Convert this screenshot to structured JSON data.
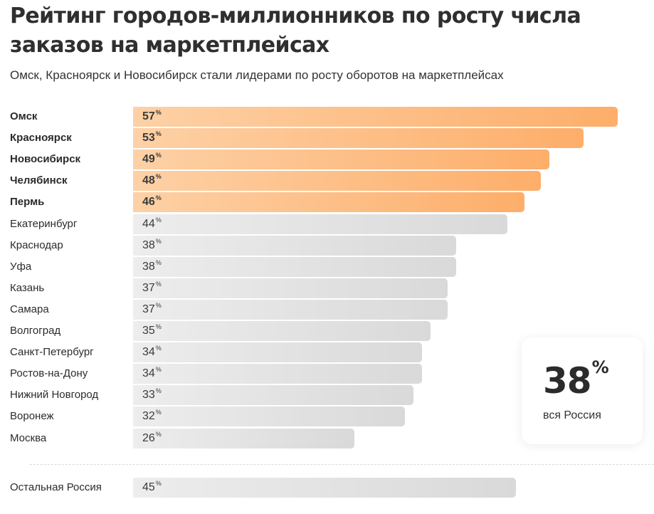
{
  "chart_data": {
    "type": "bar",
    "orientation": "horizontal",
    "title": "Рейтинг городов-миллионников по росту числа заказов на маркетплейсах",
    "subtitle": "Омск, Красноярск и Новосибирск стали лидерами по росту оборотов на маркетплейсах",
    "unit": "%",
    "xlim": [
      0,
      57
    ],
    "categories": [
      "Омск",
      "Красноярск",
      "Новосибирск",
      "Челябинск",
      "Пермь",
      "Екатеринбург",
      "Краснодар",
      "Уфа",
      "Казань",
      "Самара",
      "Волгоград",
      "Санкт-Петербург",
      "Ростов-на-Дону",
      "Нижний Новгород",
      "Воронеж",
      "Москва"
    ],
    "values": [
      57,
      53,
      49,
      48,
      46,
      44,
      38,
      38,
      37,
      37,
      35,
      34,
      34,
      33,
      32,
      26
    ],
    "highlighted_top": 5,
    "extra": {
      "label": "Остальная Россия",
      "value": 45
    },
    "summary": {
      "value": "38",
      "unit": "%",
      "caption": "вся Россия"
    },
    "colors": {
      "highlight": "#fdae6a",
      "normal": "#dcdcdc"
    }
  }
}
